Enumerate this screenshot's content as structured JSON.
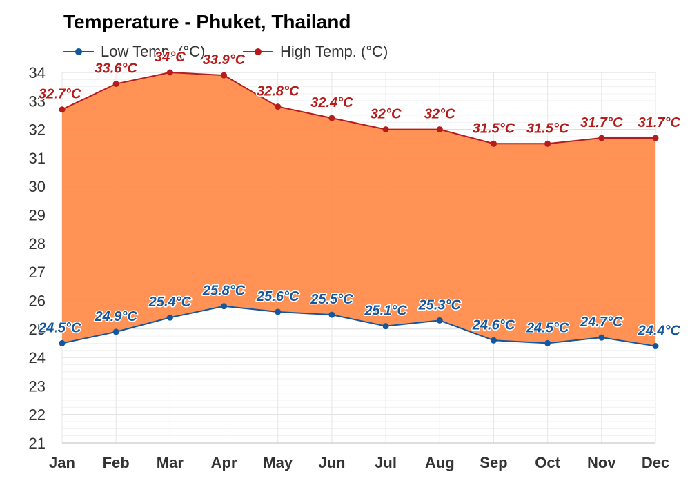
{
  "chart_data": {
    "type": "area",
    "title": "Temperature - Phuket, Thailand",
    "xlabel": "",
    "ylabel": "",
    "categories": [
      "Jan",
      "Feb",
      "Mar",
      "Apr",
      "May",
      "Jun",
      "Jul",
      "Aug",
      "Sep",
      "Oct",
      "Nov",
      "Dec"
    ],
    "ylim": [
      21,
      34
    ],
    "yticks": [
      "21",
      "22",
      "23",
      "24",
      "25",
      "26",
      "27",
      "28",
      "29",
      "30",
      "31",
      "32",
      "33",
      "34"
    ],
    "grid": true,
    "legend_position": "top-left",
    "fill_color": "#ff8c4b",
    "series": [
      {
        "name": "Low Temp. (°C)",
        "color": "#1257a0",
        "values": [
          24.5,
          24.9,
          25.4,
          25.8,
          25.6,
          25.5,
          25.1,
          25.3,
          24.6,
          24.5,
          24.7,
          24.4
        ],
        "labels": [
          "24.5°C",
          "24.9°C",
          "25.4°C",
          "25.8°C",
          "25.6°C",
          "25.5°C",
          "25.1°C",
          "25.3°C",
          "24.6°C",
          "24.5°C",
          "24.7°C",
          "24.4°C"
        ]
      },
      {
        "name": "High Temp. (°C)",
        "color": "#b71c1c",
        "values": [
          32.7,
          33.6,
          34,
          33.9,
          32.8,
          32.4,
          32,
          32,
          31.5,
          31.5,
          31.7,
          31.7
        ],
        "labels": [
          "32.7°C",
          "33.6°C",
          "34°C",
          "33.9°C",
          "32.8°C",
          "32.4°C",
          "32°C",
          "32°C",
          "31.5°C",
          "31.5°C",
          "31.7°C",
          "31.7°C"
        ]
      }
    ]
  }
}
